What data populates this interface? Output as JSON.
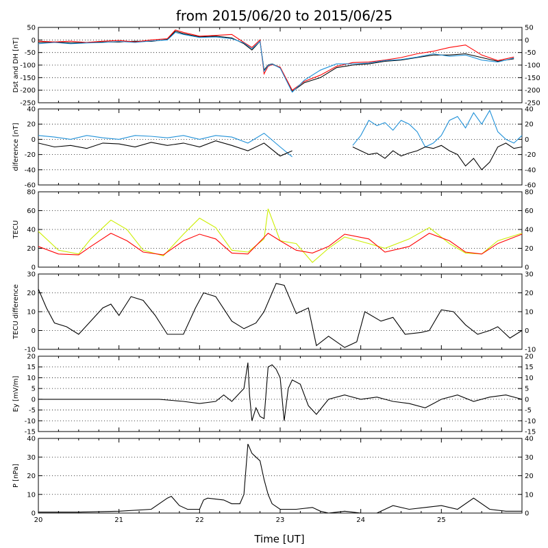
{
  "title": "from 2015/06/20 to 2015/06/25",
  "xlabel": "Time [UT]",
  "colors": {
    "black": "#000000",
    "red": "#ff0000",
    "blue": "#1e90d8",
    "yellow": "#ccee00"
  },
  "chart_data": [
    {
      "type": "line",
      "ylabel": "Dst and DH [nT]",
      "ylim": [
        -250,
        50
      ],
      "yticks": [
        50,
        0,
        -50,
        -100,
        -150,
        -200,
        -250
      ],
      "grid": true,
      "xlim": [
        20,
        26
      ],
      "series": [
        {
          "color": "black",
          "x": [
            20,
            20.2,
            20.4,
            20.6,
            20.8,
            21,
            21.2,
            21.4,
            21.6,
            21.7,
            21.8,
            22,
            22.2,
            22.4,
            22.55,
            22.65,
            22.75,
            22.8,
            22.85,
            22.9,
            23,
            23.15,
            23.3,
            23.5,
            23.7,
            23.9,
            24.1,
            24.3,
            24.5,
            24.7,
            24.9,
            25.1,
            25.3,
            25.5,
            25.7,
            25.9
          ],
          "y": [
            -10,
            -8,
            -12,
            -10,
            -8,
            -8,
            -5,
            -6,
            2,
            35,
            25,
            12,
            15,
            8,
            -15,
            -40,
            -5,
            -120,
            -100,
            -95,
            -110,
            -205,
            -170,
            -150,
            -110,
            -100,
            -95,
            -85,
            -80,
            -70,
            -60,
            -60,
            -55,
            -70,
            -85,
            -75
          ]
        },
        {
          "color": "red",
          "x": [
            20,
            20.2,
            20.4,
            20.6,
            20.8,
            21,
            21.2,
            21.4,
            21.6,
            21.7,
            21.8,
            22,
            22.2,
            22.4,
            22.55,
            22.65,
            22.75,
            22.8,
            22.85,
            22.9,
            23,
            23.15,
            23.3,
            23.5,
            23.7,
            23.9,
            24.1,
            24.3,
            24.5,
            24.7,
            24.9,
            25.1,
            25.3,
            25.5,
            25.7,
            25.9
          ],
          "y": [
            -5,
            -8,
            -5,
            -10,
            -5,
            -2,
            -8,
            0,
            5,
            40,
            30,
            15,
            18,
            22,
            -10,
            -30,
            0,
            -135,
            -105,
            -98,
            -108,
            -200,
            -165,
            -140,
            -105,
            -90,
            -88,
            -80,
            -70,
            -55,
            -45,
            -30,
            -20,
            -60,
            -82,
            -68
          ]
        },
        {
          "color": "blue",
          "x": [
            20,
            20.2,
            20.4,
            20.6,
            20.8,
            21,
            21.2,
            21.4,
            21.6,
            21.7,
            21.8,
            22,
            22.2,
            22.4,
            22.55,
            22.65,
            22.75,
            22.8,
            22.85,
            22.9,
            23,
            23.15,
            23.3,
            23.5,
            23.7,
            23.9,
            24.1,
            24.3,
            24.5,
            24.7,
            24.9,
            25.1,
            25.3,
            25.5,
            25.7,
            25.9
          ],
          "y": [
            -15,
            -10,
            -15,
            -12,
            -10,
            -6,
            -10,
            -4,
            0,
            30,
            22,
            10,
            12,
            5,
            -12,
            -35,
            -5,
            -125,
            -102,
            -96,
            -112,
            -208,
            -160,
            -120,
            -95,
            -95,
            -92,
            -82,
            -78,
            -68,
            -55,
            -65,
            -60,
            -80,
            -88,
            -72
          ]
        }
      ]
    },
    {
      "type": "line",
      "ylabel": "diference [nT]",
      "ylim": [
        -60,
        40
      ],
      "yticks": [
        40,
        20,
        0,
        -20,
        -40,
        -60
      ],
      "grid": true,
      "xlim": [
        20,
        26
      ],
      "series": [
        {
          "color": "blue",
          "segments": [
            {
              "x": [
                20,
                20.2,
                20.4,
                20.6,
                20.8,
                21,
                21.2,
                21.4,
                21.6,
                21.8,
                22,
                22.2,
                22.4,
                22.6,
                22.8,
                23,
                23.15
              ],
              "y": [
                5,
                3,
                0,
                5,
                2,
                0,
                5,
                4,
                2,
                5,
                0,
                5,
                3,
                -5,
                8,
                -10,
                -23
              ]
            },
            {
              "x": [
                23.9,
                24,
                24.1,
                24.2,
                24.3,
                24.4,
                24.5,
                24.6,
                24.7,
                24.8,
                24.9,
                25,
                25.1,
                25.2,
                25.3,
                25.4,
                25.5,
                25.6,
                25.7,
                25.8,
                25.9,
                26
              ],
              "y": [
                -8,
                5,
                25,
                18,
                22,
                12,
                25,
                20,
                10,
                -10,
                -5,
                5,
                25,
                30,
                15,
                35,
                20,
                38,
                10,
                0,
                -5,
                5
              ]
            }
          ]
        },
        {
          "color": "black",
          "segments": [
            {
              "x": [
                20,
                20.2,
                20.4,
                20.6,
                20.8,
                21,
                21.2,
                21.4,
                21.6,
                21.8,
                22,
                22.2,
                22.4,
                22.6,
                22.8,
                23,
                23.15
              ],
              "y": [
                -5,
                -10,
                -8,
                -12,
                -5,
                -6,
                -10,
                -4,
                -8,
                -5,
                -10,
                -2,
                -8,
                -15,
                -5,
                -22,
                -15
              ]
            },
            {
              "x": [
                23.9,
                24,
                24.1,
                24.2,
                24.3,
                24.4,
                24.5,
                24.6,
                24.7,
                24.8,
                24.9,
                25,
                25.1,
                25.2,
                25.3,
                25.4,
                25.5,
                25.6,
                25.7,
                25.8,
                25.9,
                26
              ],
              "y": [
                -10,
                -15,
                -20,
                -18,
                -25,
                -15,
                -22,
                -18,
                -15,
                -10,
                -12,
                -8,
                -15,
                -20,
                -35,
                -25,
                -40,
                -30,
                -10,
                -5,
                -12,
                -10
              ]
            }
          ]
        }
      ]
    },
    {
      "type": "line",
      "ylabel": "TECU",
      "ylim": [
        0,
        80
      ],
      "yticks": [
        80,
        60,
        40,
        20,
        0
      ],
      "grid": true,
      "xlim": [
        20,
        26
      ],
      "series": [
        {
          "color": "yellow",
          "x": [
            20,
            20.25,
            20.5,
            20.65,
            20.9,
            21.1,
            21.3,
            21.55,
            21.8,
            22,
            22.2,
            22.4,
            22.6,
            22.8,
            22.85,
            23,
            23.2,
            23.4,
            23.6,
            23.8,
            24.1,
            24.3,
            24.6,
            24.85,
            25.1,
            25.3,
            25.5,
            25.7,
            26
          ],
          "y": [
            38,
            18,
            14,
            30,
            50,
            40,
            18,
            12,
            35,
            52,
            42,
            18,
            16,
            30,
            62,
            28,
            25,
            5,
            20,
            32,
            25,
            20,
            30,
            42,
            25,
            15,
            14,
            28,
            36
          ]
        },
        {
          "color": "red",
          "x": [
            20,
            20.25,
            20.5,
            20.65,
            20.9,
            21.1,
            21.3,
            21.55,
            21.8,
            22,
            22.2,
            22.4,
            22.6,
            22.85,
            23,
            23.2,
            23.4,
            23.6,
            23.8,
            24.1,
            24.3,
            24.6,
            24.85,
            25.1,
            25.3,
            25.5,
            25.7,
            26
          ],
          "y": [
            22,
            14,
            13,
            22,
            36,
            28,
            16,
            13,
            28,
            35,
            30,
            15,
            14,
            36,
            28,
            18,
            15,
            22,
            35,
            30,
            16,
            22,
            36,
            28,
            16,
            14,
            25,
            35
          ]
        }
      ]
    },
    {
      "type": "line",
      "ylabel": "TECU difference",
      "ylim": [
        -10,
        30
      ],
      "yticks": [
        30,
        20,
        10,
        0,
        -10
      ],
      "grid": true,
      "xlim": [
        20,
        26
      ],
      "series": [
        {
          "color": "black",
          "x": [
            20,
            20.1,
            20.2,
            20.35,
            20.5,
            20.65,
            20.8,
            20.9,
            21,
            21.15,
            21.3,
            21.45,
            21.6,
            21.8,
            21.95,
            22.05,
            22.2,
            22.4,
            22.55,
            22.7,
            22.8,
            22.95,
            23.05,
            23.2,
            23.35,
            23.45,
            23.6,
            23.8,
            23.95,
            24.05,
            24.25,
            24.4,
            24.55,
            24.75,
            24.85,
            25,
            25.15,
            25.3,
            25.45,
            25.6,
            25.7,
            25.85,
            26
          ],
          "y": [
            22,
            12,
            4,
            2,
            -2,
            5,
            12,
            14,
            8,
            18,
            16,
            8,
            -2,
            -2,
            12,
            20,
            18,
            5,
            1,
            4,
            10,
            25,
            24,
            9,
            12,
            -8,
            -3,
            -9,
            -6,
            10,
            5,
            7,
            -2,
            -1,
            0,
            11,
            10,
            3,
            -2,
            0,
            2,
            -4,
            0
          ]
        }
      ]
    },
    {
      "type": "line",
      "ylabel": "Ey [mV/m]",
      "ylim": [
        -15,
        20
      ],
      "yticks": [
        20,
        15,
        10,
        5,
        0,
        -5,
        -10,
        -15
      ],
      "grid": true,
      "xlim": [
        20,
        26
      ],
      "series": [
        {
          "color": "black",
          "x": [
            20,
            20.5,
            21,
            21.5,
            21.8,
            22,
            22.2,
            22.3,
            22.4,
            22.5,
            22.55,
            22.6,
            22.62,
            22.65,
            22.7,
            22.75,
            22.8,
            22.85,
            22.9,
            22.95,
            23,
            23.05,
            23.1,
            23.15,
            23.25,
            23.35,
            23.45,
            23.6,
            23.8,
            24,
            24.2,
            24.4,
            24.6,
            24.8,
            25,
            25.2,
            25.4,
            25.6,
            25.8,
            26
          ],
          "y": [
            0,
            0,
            0,
            0,
            -1,
            -2,
            -1,
            2,
            -1,
            3,
            5,
            17,
            2,
            -10,
            -4,
            -8,
            -9,
            15,
            16,
            14,
            10,
            -10,
            5,
            9,
            7,
            -3,
            -7,
            0,
            2,
            0,
            1,
            -1,
            -2,
            -4,
            0,
            2,
            -1,
            1,
            2,
            0
          ]
        }
      ]
    },
    {
      "type": "line",
      "ylabel": "P [nPa]",
      "ylim": [
        0,
        40
      ],
      "yticks": [
        40,
        30,
        20,
        10,
        0
      ],
      "grid": true,
      "xlim": [
        20,
        26
      ],
      "xticks": [
        20,
        21,
        22,
        23,
        24,
        25
      ],
      "series": [
        {
          "color": "black",
          "x": [
            20,
            20.5,
            21,
            21.4,
            21.6,
            21.65,
            21.75,
            21.85,
            21.9,
            22,
            22.05,
            22.1,
            22.3,
            22.4,
            22.5,
            22.55,
            22.6,
            22.65,
            22.7,
            22.75,
            22.8,
            22.85,
            22.9,
            23,
            23.2,
            23.4,
            23.5,
            23.6,
            23.8,
            24,
            24.2,
            24.4,
            24.6,
            24.8,
            25,
            25.2,
            25.4,
            25.6,
            25.8,
            26
          ],
          "y": [
            0.5,
            0.5,
            1,
            2,
            8,
            9,
            4,
            2,
            2,
            2,
            7,
            8,
            7,
            5,
            5,
            10,
            37,
            32,
            30,
            28,
            18,
            10,
            5,
            2,
            2,
            3,
            1,
            0,
            1,
            0,
            0,
            4,
            2,
            3,
            4,
            2,
            8,
            2,
            1,
            1
          ]
        }
      ]
    }
  ]
}
